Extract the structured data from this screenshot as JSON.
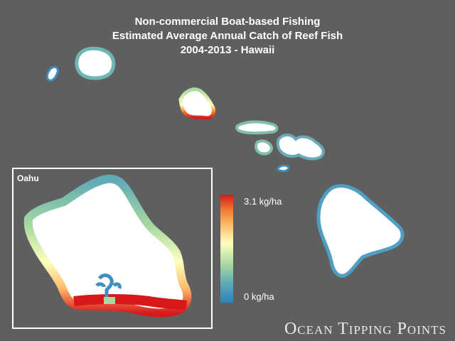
{
  "title": {
    "line1": "Non-commercial Boat-based Fishing",
    "line2": "Estimated Average Annual Catch of Reef Fish",
    "line3": "2004-2013 - Hawaii"
  },
  "inset": {
    "label": "Oahu"
  },
  "legend": {
    "max_label": "3.1 kg/ha",
    "min_label": "0 kg/ha",
    "colors": [
      "#d7191c",
      "#f07a2e",
      "#fdba6a",
      "#ffffbf",
      "#a6d9a0",
      "#5fa9b8",
      "#2b83ba"
    ]
  },
  "brand": "Ocean Tipping Points",
  "colors": {
    "background": "#5f5f5f",
    "land": "#ffffff",
    "low": "#2b83ba",
    "high": "#d7191c"
  }
}
